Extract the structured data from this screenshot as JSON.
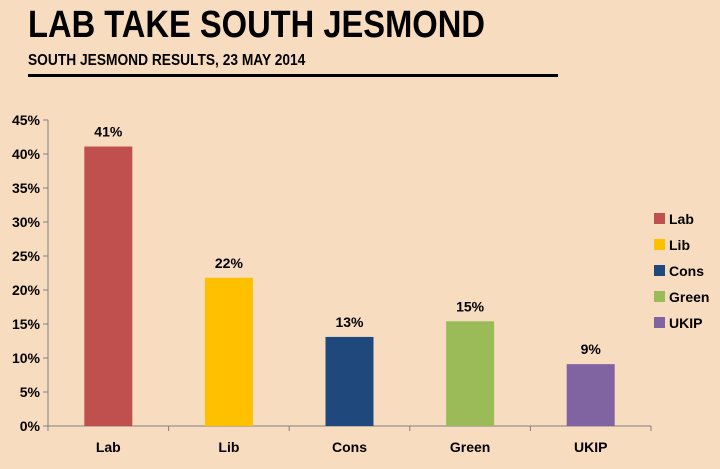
{
  "header": {
    "title": "LAB TAKE SOUTH JESMOND",
    "subtitle": "SOUTH JESMOND RESULTS, 23 MAY 2014"
  },
  "chart_data": {
    "type": "bar",
    "categories": [
      "Lab",
      "Lib",
      "Cons",
      "Green",
      "UKIP"
    ],
    "values": [
      41,
      22,
      13,
      15,
      9
    ],
    "value_actual": [
      41.1,
      21.8,
      13.1,
      15.4,
      9.1
    ],
    "data_labels": [
      "41%",
      "22%",
      "13%",
      "15%",
      "9%"
    ],
    "colors": [
      "#c0504d",
      "#ffc000",
      "#1f497d",
      "#9bbb59",
      "#8064a2"
    ],
    "ylim": [
      0,
      45
    ],
    "yticks": [
      "0%",
      "5%",
      "10%",
      "15%",
      "20%",
      "25%",
      "30%",
      "35%",
      "40%",
      "45%"
    ],
    "ytick_values": [
      0,
      5,
      10,
      15,
      20,
      25,
      30,
      35,
      40,
      45
    ],
    "legend_position": "right",
    "grid": false,
    "xlabel": "",
    "ylabel": ""
  }
}
